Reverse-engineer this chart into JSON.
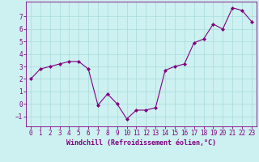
{
  "x": [
    0,
    1,
    2,
    3,
    4,
    5,
    6,
    7,
    8,
    9,
    10,
    11,
    12,
    13,
    14,
    15,
    16,
    17,
    18,
    19,
    20,
    21,
    22,
    23
  ],
  "y": [
    2.0,
    2.8,
    3.0,
    3.2,
    3.4,
    3.4,
    2.8,
    -0.1,
    0.8,
    0.0,
    -1.2,
    -0.5,
    -0.5,
    -0.3,
    2.7,
    3.0,
    3.2,
    4.9,
    5.2,
    6.4,
    6.0,
    7.7,
    7.5,
    6.6
  ],
  "line_color": "#800080",
  "marker": "D",
  "marker_size": 2.0,
  "bg_color": "#cdf0f0",
  "grid_color": "#aadddd",
  "xlabel": "Windchill (Refroidissement éolien,°C)",
  "xlabel_fontsize": 6.0,
  "tick_fontsize": 5.5,
  "xlim": [
    -0.5,
    23.5
  ],
  "ylim": [
    -1.8,
    8.2
  ],
  "yticks": [
    -1,
    0,
    1,
    2,
    3,
    4,
    5,
    6,
    7
  ],
  "xticks": [
    0,
    1,
    2,
    3,
    4,
    5,
    6,
    7,
    8,
    9,
    10,
    11,
    12,
    13,
    14,
    15,
    16,
    17,
    18,
    19,
    20,
    21,
    22,
    23
  ]
}
